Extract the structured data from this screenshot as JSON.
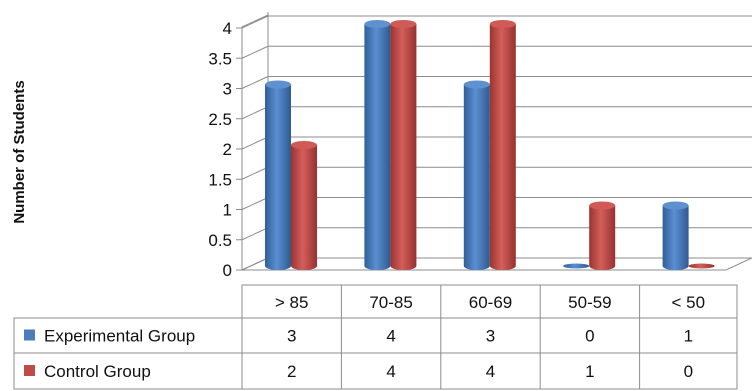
{
  "chart_data": {
    "type": "bar",
    "categories": [
      "> 85",
      "70-85",
      "60-69",
      "50-59",
      "< 50"
    ],
    "series": [
      {
        "name": "Experimental Group",
        "values": [
          3,
          4,
          3,
          0,
          1
        ],
        "color": "#4a7ebb"
      },
      {
        "name": "Control Group",
        "values": [
          2,
          4,
          4,
          1,
          0
        ],
        "color": "#be4b48"
      }
    ],
    "ylabel": "Number of Students",
    "ylim": [
      0,
      4
    ],
    "yticks": [
      "0",
      "0.5",
      "1",
      "1.5",
      "2",
      "2.5",
      "3",
      "3.5",
      "4"
    ],
    "table": {
      "rows": [
        [
          "3",
          "4",
          "3",
          "0",
          "1"
        ],
        [
          "2",
          "4",
          "4",
          "1",
          "0"
        ]
      ]
    },
    "grid": true,
    "legend_placement": "data-table"
  }
}
